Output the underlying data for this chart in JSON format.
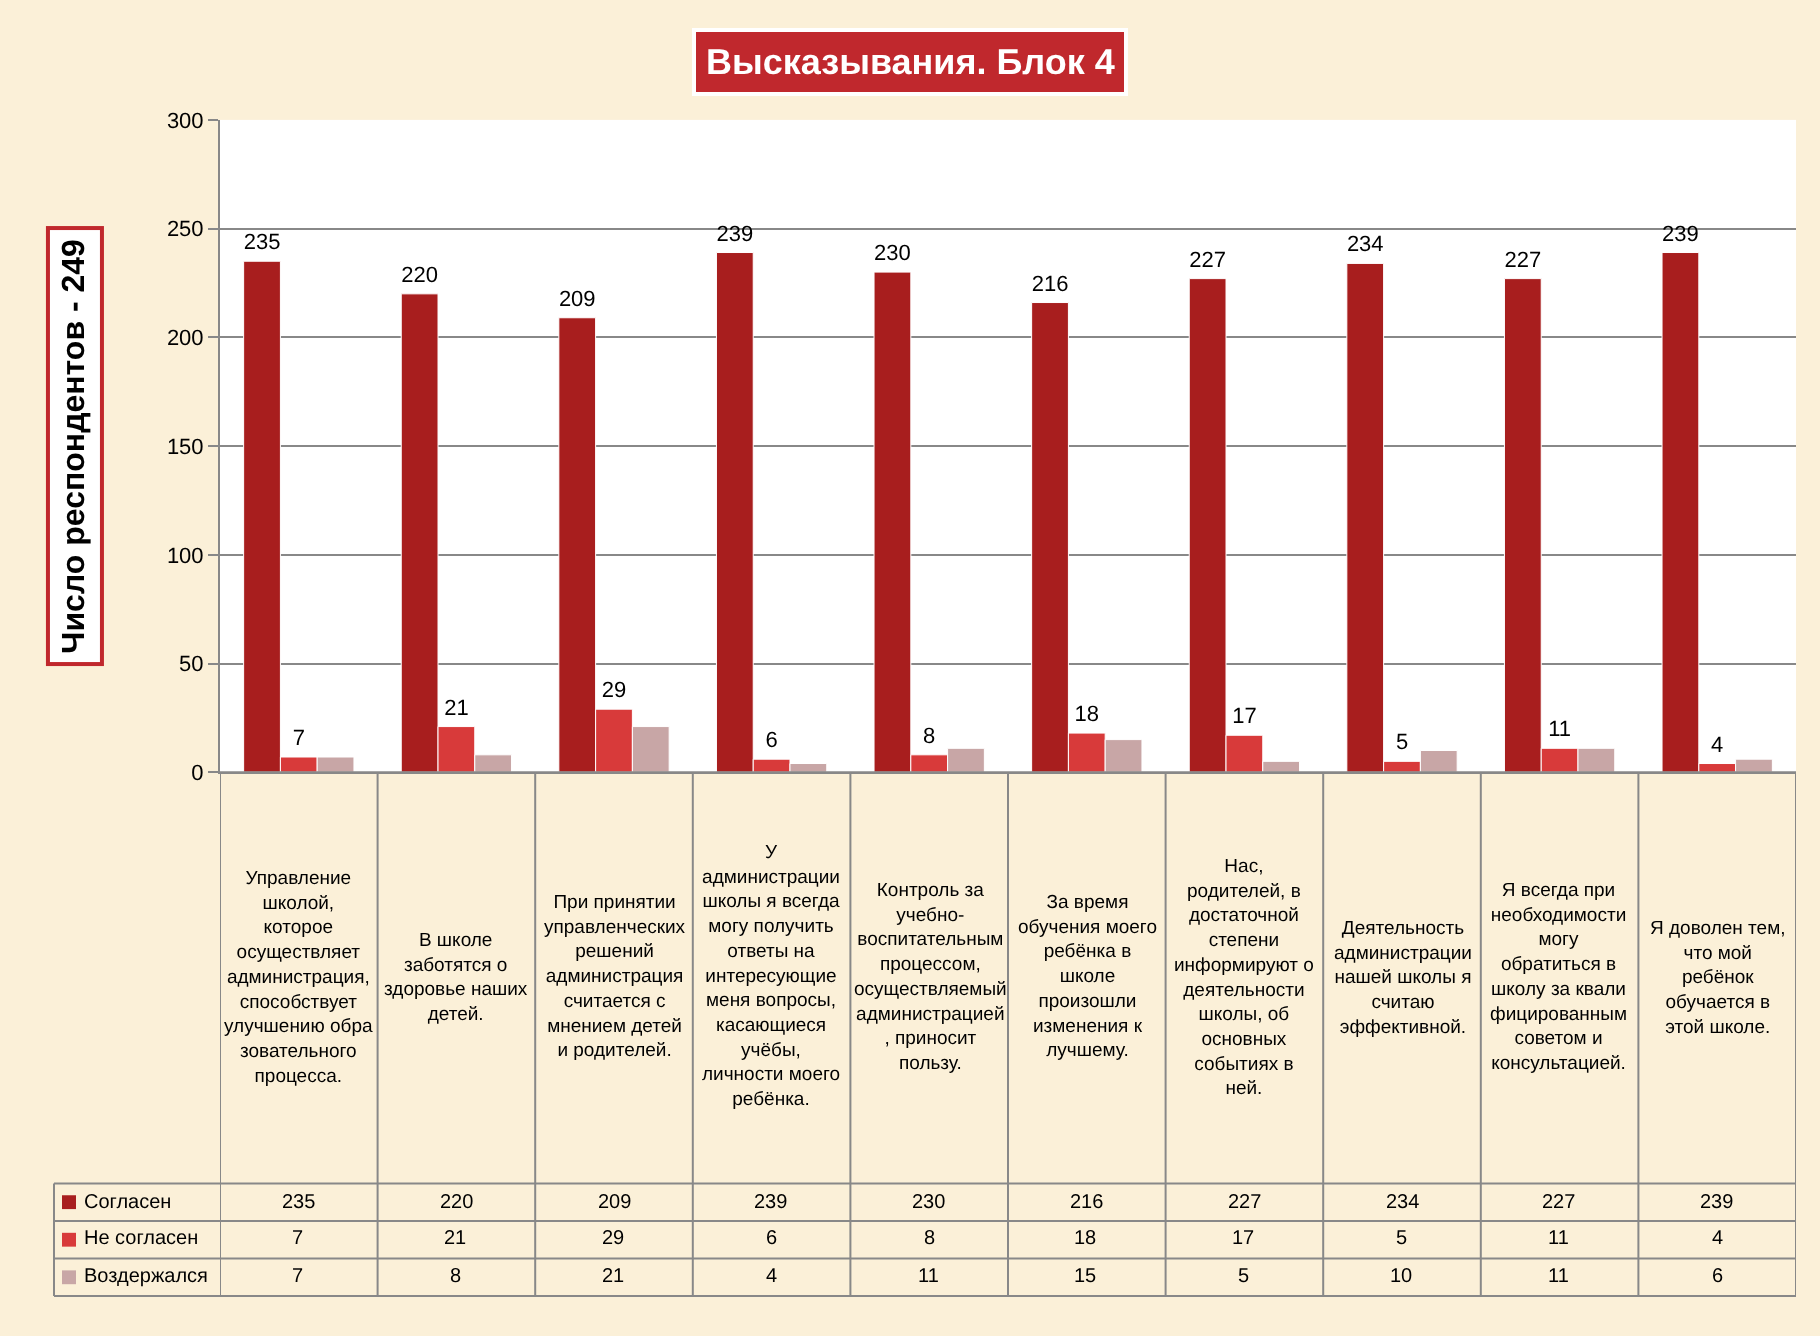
{
  "chart_data": {
    "type": "bar",
    "title": "Высказывания. Блок 4",
    "ylabel": "Число респондентов - 249",
    "categories": [
      "Управление школой, которое осуществляет администрация, способствует улучшению образовательного процесса.",
      "В школе заботятся о здоровье наших детей.",
      "При принятии управленческих решений администрация считается с мнением детей и родителей.",
      "У администрации школы я всегда могу получить ответы на интересующие меня вопросы, касающиеся учёбы, личности моего ребёнка.",
      "Контроль за учебно-воспитательным процессом, осуществляемый администрацией, приносит пользу.",
      "За время обучения моего ребёнка в школе произошли изменения к лучшему.",
      "Нас, родителей, в достаточной степени информируют о деятельности школы, об основных событиях в ней.",
      "Деятельность администрации нашей школы я считаю эффективной.",
      "Я всегда при необходимости могу обратиться в школу за квалифицированным советом и консультацией.",
      "Я доволен тем, что мой ребёнок обучается в этой школе."
    ],
    "series": [
      {
        "name": "Согласен",
        "color": "#a81e1e",
        "values": [
          235,
          220,
          209,
          239,
          230,
          216,
          227,
          234,
          227,
          239
        ],
        "value_labels": [
          "235",
          "220",
          "209",
          "239",
          "230",
          "216",
          "227",
          "234",
          "227",
          "239"
        ]
      },
      {
        "name": "Не согласен",
        "color": "#d83a3a",
        "values": [
          7,
          21,
          29,
          6,
          8,
          18,
          17,
          5,
          11,
          4
        ],
        "value_labels": [
          "7",
          "21",
          "29",
          "6",
          "8",
          "18",
          "17",
          "5",
          "11",
          "4"
        ]
      },
      {
        "name": "Воздержался",
        "color": "#c8a6a6",
        "values": [
          7,
          8,
          21,
          4,
          11,
          15,
          5,
          10,
          11,
          6
        ]
      }
    ],
    "ylim": [
      0,
      300
    ],
    "yticks": [
      0,
      50,
      100,
      150,
      200,
      250,
      300
    ],
    "grid": "y",
    "data_labels": true,
    "legend": "bottom left"
  }
}
